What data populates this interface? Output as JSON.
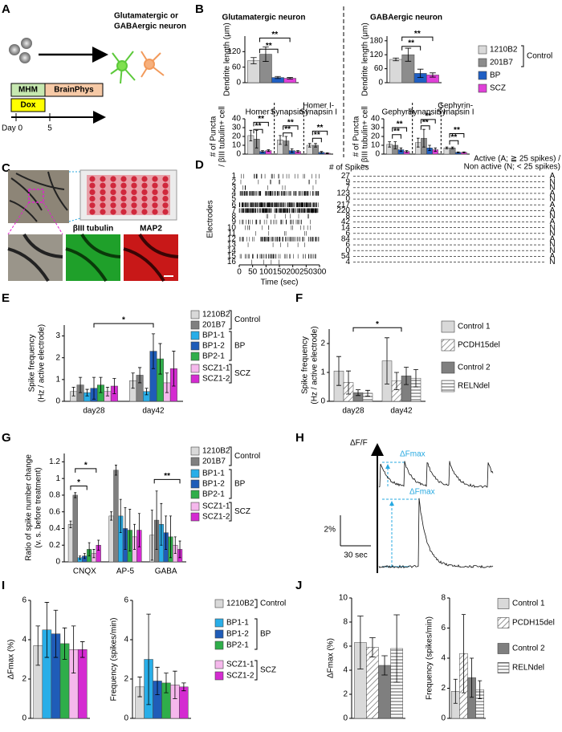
{
  "panel_labels": [
    "A",
    "B",
    "C",
    "D",
    "E",
    "F",
    "G",
    "H",
    "I",
    "J"
  ],
  "panel_a": {
    "target": [
      "Glutamatergic or",
      "GABAergic neuron"
    ],
    "media": [
      "MHM",
      "BrainPhys"
    ],
    "drug": "Dox",
    "days": [
      "Day 0",
      "5"
    ]
  },
  "panel_c": {
    "stains": [
      "βIII tubulin",
      "MAP2"
    ]
  },
  "panel_h": {
    "axis_label": "ΔF/F",
    "peak_labels": [
      "ΔFmax",
      "ΔFmax"
    ],
    "scale_y": "2%",
    "scale_x": "30 sec"
  },
  "chart_data": [
    {
      "type": "bar",
      "title": "Glutamatergic neuron",
      "ylabel": [
        "Dendrite length (μm)"
      ],
      "categories": [
        null
      ],
      "ylim": [
        0,
        180
      ],
      "yticks": [
        0,
        60,
        120
      ],
      "legend_groups": [
        "Control"
      ],
      "annotations": [
        "**",
        "**"
      ],
      "series": [
        {
          "name": "1210B2",
          "color": "#d9d9d9",
          "values": [
            85
          ],
          "errors": [
            12
          ]
        },
        {
          "name": "201B7",
          "color": "#8c8c8c",
          "values": [
            110
          ],
          "errors": [
            28
          ]
        },
        {
          "name": "BP",
          "color": "#1f5fc4",
          "values": [
            20
          ],
          "errors": [
            4
          ]
        },
        {
          "name": "SCZ",
          "color": "#e040d8",
          "values": [
            17
          ],
          "errors": [
            3
          ]
        }
      ]
    },
    {
      "type": "bar",
      "title": "GABAergic neuron",
      "ylabel": [
        "Dendrite length (μm)"
      ],
      "categories": [
        null
      ],
      "ylim": [
        0,
        200
      ],
      "yticks": [
        0,
        60,
        120,
        180
      ],
      "annotations": [
        "**",
        "**"
      ],
      "series": [
        {
          "color": "#d9d9d9",
          "values": [
            100
          ],
          "errors": [
            6
          ]
        },
        {
          "color": "#8c8c8c",
          "values": [
            120
          ],
          "errors": [
            28
          ]
        },
        {
          "color": "#1f5fc4",
          "values": [
            40
          ],
          "errors": [
            18
          ]
        },
        {
          "color": "#e040d8",
          "values": [
            33
          ],
          "errors": [
            9
          ]
        }
      ]
    },
    {
      "type": "bar",
      "ylabel": [
        "# of Puncta",
        "/ βIII tubulin+ cell"
      ],
      "categories": [
        [
          "Homer I"
        ],
        [
          "Synapsin I"
        ],
        [
          "Homer I-",
          "Synapsin I"
        ]
      ],
      "ylim": [
        0,
        40
      ],
      "yticks": [
        0,
        10,
        20,
        30,
        40
      ],
      "annotations": [
        "**",
        "**",
        "**",
        "**",
        "**",
        "**"
      ],
      "series": [
        {
          "color": "#d9d9d9",
          "values": [
            21,
            16,
            10
          ],
          "errors": [
            6,
            5,
            2
          ]
        },
        {
          "color": "#8c8c8c",
          "values": [
            17,
            15,
            10
          ],
          "errors": [
            10,
            5,
            2
          ]
        },
        {
          "color": "#1f5fc4",
          "values": [
            3,
            4,
            2
          ],
          "errors": [
            1,
            2,
            1
          ]
        },
        {
          "color": "#e040d8",
          "values": [
            4,
            3,
            1
          ],
          "errors": [
            1,
            1,
            0.5
          ]
        }
      ]
    },
    {
      "type": "bar",
      "ylabel": [
        "# of Puncta",
        "/ βIII tubulin+ cell"
      ],
      "categories": [
        [
          "Gephyrin"
        ],
        [
          "Synapsin I"
        ],
        [
          "Gephyrin-",
          "Synapsin I"
        ]
      ],
      "ylim": [
        0,
        40
      ],
      "yticks": [
        0,
        10,
        20,
        30,
        40
      ],
      "annotations": [
        "**",
        "**",
        "**",
        "**",
        "**",
        "**"
      ],
      "series": [
        {
          "color": "#d9d9d9",
          "values": [
            11,
            13,
            7
          ],
          "errors": [
            3,
            5,
            1
          ]
        },
        {
          "color": "#8c8c8c",
          "values": [
            10,
            18,
            7
          ],
          "errors": [
            4,
            10,
            1
          ]
        },
        {
          "color": "#1f5fc4",
          "values": [
            5,
            7,
            2
          ],
          "errors": [
            2,
            3,
            0.5
          ]
        },
        {
          "color": "#e040d8",
          "values": [
            3,
            5,
            2
          ],
          "errors": [
            1,
            2,
            0.5
          ]
        }
      ]
    },
    {
      "type": "raster",
      "xlabel": "Time (sec)",
      "ylabel": "Electrodes",
      "xlim": [
        0,
        300
      ],
      "xticks": [
        0,
        50,
        100,
        150,
        200,
        250,
        300
      ],
      "electrodes": [
        1,
        2,
        3,
        4,
        5,
        6,
        7,
        8,
        9,
        10,
        11,
        12,
        13,
        14,
        15,
        16
      ],
      "spike_counts": [
        27,
        9,
        7,
        123,
        0,
        217,
        220,
        8,
        42,
        14,
        6,
        84,
        6,
        0,
        54,
        4
      ],
      "status": [
        "A",
        "N",
        "N",
        "A",
        "N",
        "A",
        "A",
        "N",
        "A",
        "N",
        "N",
        "A",
        "N",
        "N",
        "A",
        "N"
      ],
      "count_header": "# of Spikes",
      "activity_header": [
        "Active (A; ≧ 25 spikes) /",
        "Non active (N; < 25 spikes)"
      ]
    },
    {
      "type": "bar",
      "ylabel": [
        "Spike frequency",
        "(Hz / active electrode)"
      ],
      "categories": [
        "day28",
        "day42"
      ],
      "ylim": [
        0,
        3.5
      ],
      "yticks": [
        0,
        1,
        2,
        3
      ],
      "legend_groups": [
        "Control",
        "BP",
        "SCZ"
      ],
      "annotations": [
        "*"
      ],
      "series": [
        {
          "name": "1210B2",
          "color": "#d9d9d9",
          "values": [
            0.45,
            0.95
          ],
          "errors": [
            0.2,
            0.35
          ]
        },
        {
          "name": "201B7",
          "color": "#808080",
          "values": [
            0.75,
            1.2
          ],
          "errors": [
            0.35,
            0.35
          ]
        },
        {
          "name": "BP1-1",
          "color": "#29aee8",
          "values": [
            0.4,
            0.45
          ],
          "errors": [
            0.15,
            0.15
          ]
        },
        {
          "name": "BP1-2",
          "color": "#1f5cb8",
          "values": [
            0.6,
            2.3
          ],
          "errors": [
            0.5,
            0.8
          ]
        },
        {
          "name": "BP2-1",
          "color": "#2fae4a",
          "values": [
            0.75,
            1.95
          ],
          "errors": [
            0.35,
            0.7
          ]
        },
        {
          "name": "SCZ1-1",
          "color": "#f5b8ec",
          "values": [
            0.45,
            0.85
          ],
          "errors": [
            0.2,
            0.45
          ]
        },
        {
          "name": "SCZ1-2",
          "color": "#d42bd1",
          "values": [
            0.7,
            1.5
          ],
          "errors": [
            0.35,
            0.8
          ]
        }
      ]
    },
    {
      "type": "bar",
      "ylabel": [
        "Spike frequency",
        "(Hz / active electrode)"
      ],
      "categories": [
        "day28",
        "day42"
      ],
      "ylim": [
        0,
        2.5
      ],
      "yticks": [
        0,
        1,
        2
      ],
      "annotations": [
        "*"
      ],
      "series": [
        {
          "name": "Control 1",
          "color": "#d9d9d9",
          "values": [
            1.05,
            1.4
          ],
          "errors": [
            0.5,
            0.8
          ]
        },
        {
          "name": "PCDH15del",
          "color": "#ffffff",
          "hatch": "diagonal",
          "values": [
            0.65,
            0.7
          ],
          "errors": [
            0.4,
            0.3
          ]
        },
        {
          "name": "Control 2",
          "color": "#7f7f7f",
          "values": [
            0.3,
            0.88
          ],
          "errors": [
            0.1,
            0.3
          ]
        },
        {
          "name": "RELNdel",
          "color": "#ffffff",
          "hatch": "horizontal",
          "values": [
            0.28,
            0.8
          ],
          "errors": [
            0.1,
            0.3
          ]
        }
      ]
    },
    {
      "type": "bar",
      "ylabel": [
        "Ratio of spike number change",
        "(v. s. before treatment)"
      ],
      "categories": [
        "CNQX",
        "AP-5",
        "GABA"
      ],
      "ylim": [
        0,
        1.3
      ],
      "yticks": [
        0,
        0.2,
        0.4,
        0.6,
        0.8,
        1,
        1.2
      ],
      "legend_groups": [
        "Control",
        "BP",
        "SCZ"
      ],
      "annotations": [
        "*",
        "*",
        "**"
      ],
      "series": [
        {
          "name": "1210B2",
          "color": "#d9d9d9",
          "values": [
            0.45,
            0.55,
            0.32
          ],
          "errors": [
            0.04,
            0.05,
            0.3
          ]
        },
        {
          "name": "201B7",
          "color": "#808080",
          "values": [
            0.8,
            1.1,
            0.5
          ],
          "errors": [
            0.03,
            0.06,
            0.35
          ]
        },
        {
          "name": "BP1-1",
          "color": "#29aee8",
          "values": [
            0.05,
            0.55,
            0.45
          ],
          "errors": [
            0.02,
            0.2,
            0.25
          ]
        },
        {
          "name": "BP1-2",
          "color": "#1f5cb8",
          "values": [
            0.07,
            0.4,
            0.35
          ],
          "errors": [
            0.03,
            0.25,
            0.2
          ]
        },
        {
          "name": "BP2-1",
          "color": "#2fae4a",
          "values": [
            0.15,
            0.38,
            0.3
          ],
          "errors": [
            0.08,
            0.25,
            0.25
          ]
        },
        {
          "name": "SCZ1-1",
          "color": "#f5b8ec",
          "values": [
            0.1,
            0.3,
            0.2
          ],
          "errors": [
            0.05,
            0.15,
            0.1
          ]
        },
        {
          "name": "SCZ1-2",
          "color": "#d42bd1",
          "values": [
            0.2,
            0.38,
            0.15
          ],
          "errors": [
            0.06,
            0.2,
            0.1
          ]
        }
      ]
    },
    {
      "type": "bar",
      "ylabel": [
        "ΔFmax (%)"
      ],
      "categories": [
        null
      ],
      "ylim": [
        0,
        6
      ],
      "yticks": [
        0,
        2,
        4,
        6
      ],
      "legend_groups": [
        "Control",
        "BP",
        "SCZ"
      ],
      "series": [
        {
          "name": "1210B2",
          "color": "#d9d9d9",
          "values": [
            3.7
          ],
          "errors": [
            1
          ]
        },
        {
          "name": "BP1-1",
          "color": "#29aee8",
          "values": [
            4.5
          ],
          "errors": [
            1.4
          ]
        },
        {
          "name": "BP1-2",
          "color": "#1f5cb8",
          "values": [
            4.3
          ],
          "errors": [
            1.2
          ]
        },
        {
          "name": "BP2-1",
          "color": "#2fae4a",
          "values": [
            3.8
          ],
          "errors": [
            0.8
          ]
        },
        {
          "name": "SCZ1-1",
          "color": "#f5b8ec",
          "values": [
            3.5
          ],
          "errors": [
            1.2
          ]
        },
        {
          "name": "SCZ1-2",
          "color": "#d42bd1",
          "values": [
            3.5
          ],
          "errors": [
            0.4
          ]
        }
      ]
    },
    {
      "type": "bar",
      "ylabel": [
        "Frequency (spikes/min)"
      ],
      "categories": [
        null
      ],
      "ylim": [
        0,
        6
      ],
      "yticks": [
        0,
        2,
        4,
        6
      ],
      "series": [
        {
          "color": "#d9d9d9",
          "values": [
            1.6
          ],
          "errors": [
            0.5
          ]
        },
        {
          "color": "#29aee8",
          "values": [
            3
          ],
          "errors": [
            2.3
          ]
        },
        {
          "color": "#1f5cb8",
          "values": [
            1.9
          ],
          "errors": [
            0.7
          ]
        },
        {
          "color": "#2fae4a",
          "values": [
            1.8
          ],
          "errors": [
            0.5
          ]
        },
        {
          "color": "#f5b8ec",
          "values": [
            1.7
          ],
          "errors": [
            0.7
          ]
        },
        {
          "color": "#d42bd1",
          "values": [
            1.6
          ],
          "errors": [
            0.2
          ]
        }
      ]
    },
    {
      "type": "bar",
      "ylabel": [
        "ΔFmax (%)"
      ],
      "categories": [
        null
      ],
      "ylim": [
        0,
        10
      ],
      "yticks": [
        0,
        2,
        4,
        6,
        8,
        10
      ],
      "series": [
        {
          "name": "Control 1",
          "color": "#d9d9d9",
          "values": [
            6.3
          ],
          "errors": [
            2.2
          ]
        },
        {
          "name": "PCDH15del",
          "color": "#ffffff",
          "hatch": "diagonal",
          "values": [
            5.9
          ],
          "errors": [
            0.8
          ]
        },
        {
          "name": "Control 2",
          "color": "#7f7f7f",
          "values": [
            4.4
          ],
          "errors": [
            0.8
          ]
        },
        {
          "name": "RELNdel",
          "color": "#ffffff",
          "hatch": "horizontal",
          "values": [
            5.8
          ],
          "errors": [
            2.8
          ]
        }
      ]
    },
    {
      "type": "bar",
      "ylabel": [
        "Frequency (spikes/min)"
      ],
      "categories": [
        null
      ],
      "ylim": [
        0,
        8
      ],
      "yticks": [
        0,
        2,
        4,
        6,
        8
      ],
      "series": [
        {
          "color": "#d9d9d9",
          "values": [
            1.8
          ],
          "errors": [
            0.8
          ]
        },
        {
          "color": "#ffffff",
          "hatch": "diagonal",
          "values": [
            4.3
          ],
          "errors": [
            2.6
          ]
        },
        {
          "color": "#7f7f7f",
          "values": [
            2.7
          ],
          "errors": [
            1.3
          ]
        },
        {
          "color": "#ffffff",
          "hatch": "horizontal",
          "values": [
            1.9
          ],
          "errors": [
            0.6
          ]
        }
      ]
    }
  ]
}
